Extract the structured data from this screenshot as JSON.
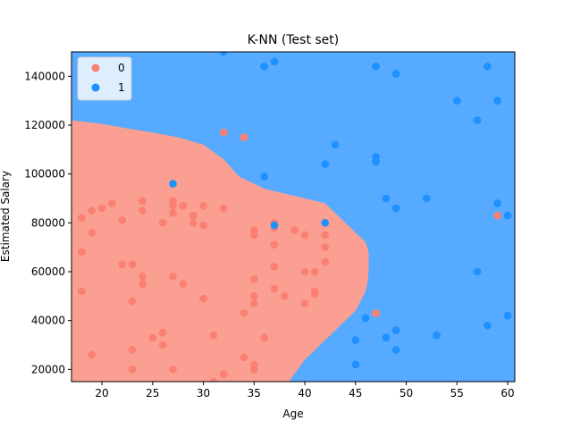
{
  "chart_data": {
    "type": "scatter",
    "title": "K-NN (Test set)",
    "xlabel": "Age",
    "ylabel": "Estimated Salary",
    "xlim": [
      17,
      60.7
    ],
    "ylim": [
      15000,
      150000
    ],
    "xticks": [
      20,
      25,
      30,
      35,
      40,
      45,
      50,
      55,
      60
    ],
    "yticks": [
      20000,
      40000,
      60000,
      80000,
      100000,
      120000,
      140000
    ],
    "xtick_labels": [
      "20",
      "25",
      "30",
      "35",
      "40",
      "45",
      "50",
      "55",
      "60"
    ],
    "ytick_labels": [
      "20000",
      "40000",
      "60000",
      "80000",
      "100000",
      "120000",
      "140000"
    ],
    "region_colors": {
      "0": "#fa9f92",
      "1": "#56aaff"
    },
    "boundary": [
      [
        122000,
        17
      ],
      [
        120500,
        20
      ],
      [
        119000,
        22
      ],
      [
        117000,
        25
      ],
      [
        115000,
        27.5
      ],
      [
        112000,
        30
      ],
      [
        106000,
        32
      ],
      [
        99000,
        33.5
      ],
      [
        96000,
        35
      ],
      [
        94000,
        36
      ],
      [
        92000,
        38
      ],
      [
        90000,
        40
      ],
      [
        88000,
        42
      ],
      [
        84000,
        43
      ],
      [
        80000,
        44
      ],
      [
        76000,
        45
      ],
      [
        72000,
        46
      ],
      [
        68000,
        46.3
      ],
      [
        62000,
        46.3
      ],
      [
        56000,
        46.2
      ],
      [
        52000,
        46
      ],
      [
        48000,
        45.5
      ],
      [
        44000,
        45
      ],
      [
        40000,
        44
      ],
      [
        36000,
        43
      ],
      [
        32000,
        42
      ],
      [
        28000,
        41
      ],
      [
        24000,
        40
      ],
      [
        20000,
        39.3
      ],
      [
        16000,
        38.6
      ],
      [
        15000,
        38.5
      ]
    ],
    "legend": {
      "placement": "upper-left",
      "entries": [
        {
          "label": "0",
          "color": "#fa8072"
        },
        {
          "label": "1",
          "color": "#1e90ff"
        }
      ]
    },
    "series": [
      {
        "name": "0",
        "color": "#fa8072",
        "points": [
          [
            18,
            82000
          ],
          [
            19,
            85000
          ],
          [
            20,
            86000
          ],
          [
            21,
            88000
          ],
          [
            22,
            81000
          ],
          [
            24,
            89000
          ],
          [
            24,
            85000
          ],
          [
            18,
            68000
          ],
          [
            19,
            76000
          ],
          [
            18,
            52000
          ],
          [
            22,
            63000
          ],
          [
            23,
            63000
          ],
          [
            24,
            58000
          ],
          [
            24,
            55000
          ],
          [
            23,
            48000
          ],
          [
            19,
            26000
          ],
          [
            23,
            28000
          ],
          [
            23,
            20000
          ],
          [
            25,
            33000
          ],
          [
            26,
            35000
          ],
          [
            26,
            30000
          ],
          [
            27,
            20000
          ],
          [
            26,
            80000
          ],
          [
            27,
            84000
          ],
          [
            27,
            89000
          ],
          [
            27,
            87000
          ],
          [
            28,
            87000
          ],
          [
            29,
            83000
          ],
          [
            29,
            80000
          ],
          [
            30,
            87000
          ],
          [
            30,
            79000
          ],
          [
            27,
            58000
          ],
          [
            28,
            55000
          ],
          [
            30,
            49000
          ],
          [
            31,
            34000
          ],
          [
            32,
            117000
          ],
          [
            34,
            115000
          ],
          [
            32,
            86000
          ],
          [
            35,
            77000
          ],
          [
            35,
            75000
          ],
          [
            34,
            43000
          ],
          [
            35,
            57000
          ],
          [
            35,
            50000
          ],
          [
            35,
            47000
          ],
          [
            34,
            25000
          ],
          [
            35,
            22000
          ],
          [
            35,
            20000
          ],
          [
            32,
            18000
          ],
          [
            31,
            15000
          ],
          [
            36,
            33000
          ],
          [
            37,
            80000
          ],
          [
            37,
            78000
          ],
          [
            37,
            71000
          ],
          [
            37,
            62000
          ],
          [
            37,
            53000
          ],
          [
            38,
            50000
          ],
          [
            39,
            77000
          ],
          [
            40,
            75000
          ],
          [
            40,
            60000
          ],
          [
            41,
            60000
          ],
          [
            41,
            52000
          ],
          [
            41,
            51000
          ],
          [
            40,
            47000
          ],
          [
            42,
            80000
          ],
          [
            42,
            75000
          ],
          [
            42,
            70000
          ],
          [
            42,
            64000
          ],
          [
            47,
            43000
          ],
          [
            59,
            83000
          ]
        ]
      },
      {
        "name": "1",
        "color": "#1e90ff",
        "points": [
          [
            27,
            96000
          ],
          [
            32,
            150000
          ],
          [
            36,
            144000
          ],
          [
            37,
            146000
          ],
          [
            36,
            99000
          ],
          [
            37,
            79000
          ],
          [
            42,
            80000
          ],
          [
            43,
            112000
          ],
          [
            42,
            104000
          ],
          [
            47,
            144000
          ],
          [
            49,
            141000
          ],
          [
            47,
            107000
          ],
          [
            47,
            105000
          ],
          [
            48,
            90000
          ],
          [
            49,
            86000
          ],
          [
            52,
            90000
          ],
          [
            55,
            130000
          ],
          [
            57,
            122000
          ],
          [
            58,
            144000
          ],
          [
            59,
            130000
          ],
          [
            59,
            88000
          ],
          [
            60,
            83000
          ],
          [
            57,
            60000
          ],
          [
            60,
            42000
          ],
          [
            58,
            38000
          ],
          [
            53,
            34000
          ],
          [
            46,
            41000
          ],
          [
            48,
            33000
          ],
          [
            49,
            36000
          ],
          [
            49,
            28000
          ],
          [
            45,
            32000
          ],
          [
            45,
            22000
          ]
        ]
      }
    ]
  }
}
